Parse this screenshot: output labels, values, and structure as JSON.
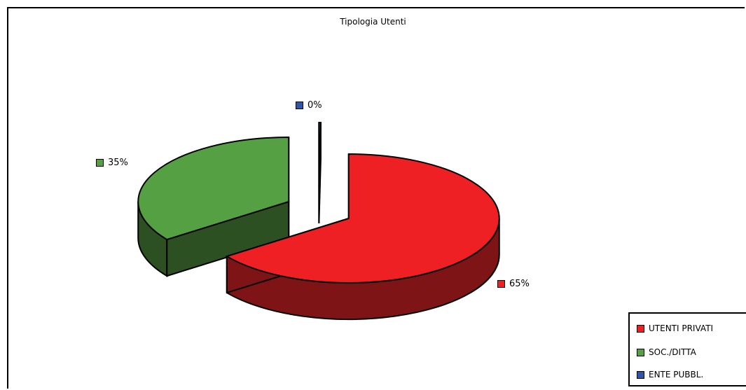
{
  "chart_data": {
    "type": "pie",
    "title": "Tipologia Utenti",
    "categories": [
      "UTENTI PRIVATI",
      "SOC./DITTA",
      "ENTE PUBBL."
    ],
    "values": [
      65,
      35,
      0
    ],
    "data_labels": [
      "65%",
      "35%",
      "0%"
    ],
    "colors": [
      "#ee2024",
      "#56a044",
      "#2f55a4"
    ],
    "side_colors": [
      "#7f1416",
      "#2d5022",
      "#1a3060"
    ],
    "legend": "bottom-right",
    "style": "3d-exploded"
  }
}
